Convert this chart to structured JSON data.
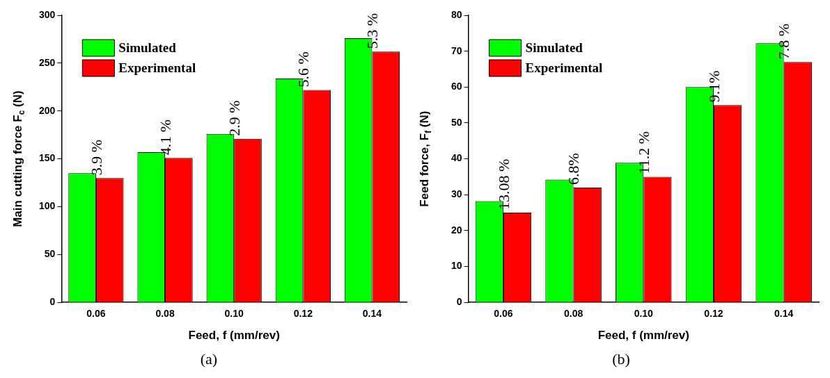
{
  "chart_data": [
    {
      "type": "bar",
      "xlabel": "Feed, f (mm/rev)",
      "ylabel": "Main cutting force F$_{c}$ (N)",
      "categories": [
        "0.06",
        "0.08",
        "0.10",
        "0.12",
        "0.14"
      ],
      "series": [
        {
          "name": "Simulated",
          "color": "#00ff00",
          "values": [
            135,
            157,
            176,
            234,
            276
          ]
        },
        {
          "name": "Experimental",
          "color": "#ff0000",
          "values": [
            130,
            151,
            171,
            222,
            262
          ]
        }
      ],
      "ylim": [
        0,
        300
      ],
      "yticks": [
        0,
        50,
        100,
        150,
        200,
        250,
        300
      ],
      "grid": false,
      "legend": "top left",
      "annotations": [
        {
          "text": "3.9 %",
          "x": "0.06",
          "y": 130
        },
        {
          "text": "4.1 %",
          "x": "0.08",
          "y": 151
        },
        {
          "text": "2.9 %",
          "x": "0.10",
          "y": 171
        },
        {
          "text": "5.6 %",
          "x": "0.12",
          "y": 222
        },
        {
          "text": "5.3 %",
          "x": "0.14",
          "y": 262
        },
        "(a)"
      ]
    },
    {
      "type": "bar",
      "xlabel": "Feed, f (mm/rev)",
      "ylabel": "Feed force, F$_{f}$ (N)",
      "categories": [
        "0.06",
        "0.08",
        "0.10",
        "0.12",
        "0.14"
      ],
      "series": [
        {
          "name": "Simulated",
          "color": "#00ff00",
          "values": [
            28.2,
            34.2,
            38.9,
            60,
            72.2
          ]
        },
        {
          "name": "Experimental",
          "color": "#ff0000",
          "values": [
            25,
            32,
            35,
            55,
            67
          ]
        }
      ],
      "ylim": [
        0,
        80
      ],
      "yticks": [
        0,
        10,
        20,
        30,
        40,
        50,
        60,
        70,
        80
      ],
      "grid": false,
      "legend": "top left",
      "annotations": [
        {
          "text": "13.08 %",
          "x": "0.06",
          "y": 25
        },
        {
          "text": "6.8%",
          "x": "0.08",
          "y": 32
        },
        {
          "text": "11.2 %",
          "x": "0.10",
          "y": 35
        },
        {
          "text": "9.1%",
          "x": "0.12",
          "y": 55
        },
        {
          "text": "7.8 %",
          "x": "0.14",
          "y": 67
        },
        "(b)"
      ]
    }
  ]
}
